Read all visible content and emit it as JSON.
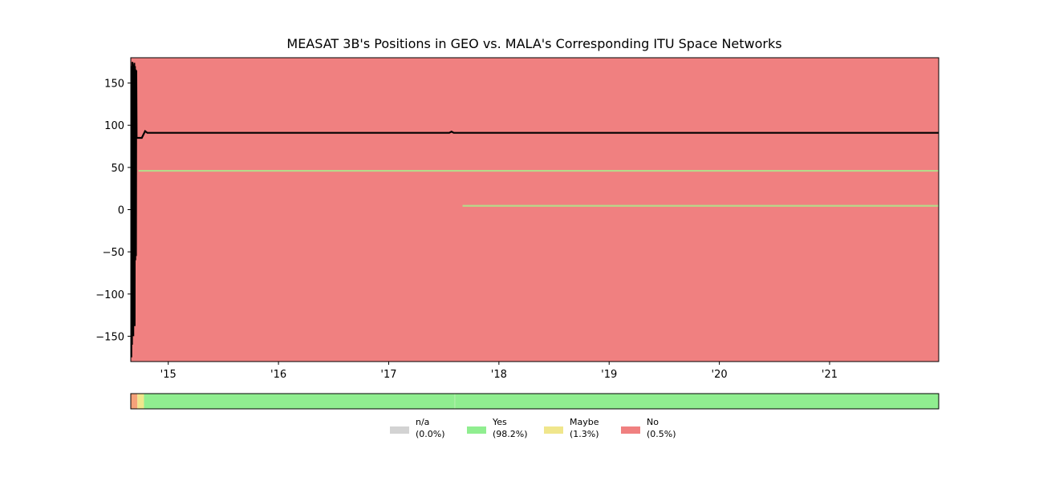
{
  "chart_data": {
    "type": "line",
    "title": "MEASAT 3B's Positions in GEO vs. MALA's Corresponding ITU Space Networks",
    "xlabel": "",
    "ylabel": "",
    "xlim": [
      2014.66,
      2021.99
    ],
    "ylim": [
      -180,
      180
    ],
    "background_color": "#f08080",
    "grid": false,
    "x_ticks": [
      {
        "value": 2015,
        "label": "'15"
      },
      {
        "value": 2016,
        "label": "'16"
      },
      {
        "value": 2017,
        "label": "'17"
      },
      {
        "value": 2018,
        "label": "'18"
      },
      {
        "value": 2019,
        "label": "'19"
      },
      {
        "value": 2020,
        "label": "'20"
      },
      {
        "value": 2021,
        "label": "'21"
      }
    ],
    "y_ticks": [
      {
        "value": 150,
        "label": "150"
      },
      {
        "value": 100,
        "label": "100"
      },
      {
        "value": 50,
        "label": "50"
      },
      {
        "value": 0,
        "label": "0"
      },
      {
        "value": -50,
        "label": "−50"
      },
      {
        "value": -100,
        "label": "−100"
      },
      {
        "value": -150,
        "label": "−150"
      }
    ],
    "series": [
      {
        "color": "#000000",
        "points": [
          [
            2014.665,
            -175
          ],
          [
            2014.668,
            170
          ],
          [
            2014.671,
            -160
          ],
          [
            2014.674,
            175
          ],
          [
            2014.677,
            -120
          ],
          [
            2014.68,
            172
          ],
          [
            2014.683,
            -150
          ],
          [
            2014.686,
            168
          ],
          [
            2014.689,
            -100
          ],
          [
            2014.692,
            174
          ],
          [
            2014.695,
            -138
          ],
          [
            2014.698,
            170
          ],
          [
            2014.701,
            -60
          ],
          [
            2014.704,
            166
          ],
          [
            2014.707,
            -55
          ],
          [
            2014.71,
            165
          ],
          [
            2014.713,
            85
          ],
          [
            2014.76,
            85
          ],
          [
            2014.79,
            93
          ],
          [
            2014.81,
            91
          ],
          [
            2017.55,
            91
          ],
          [
            2017.57,
            92.5
          ],
          [
            2017.59,
            91
          ],
          [
            2021.99,
            91
          ]
        ]
      }
    ],
    "itu_networks": [
      {
        "y": 46,
        "x_start": 2014.73,
        "x_end": 2021.99,
        "color": "#b5d98a"
      },
      {
        "y": 4.5,
        "x_start": 2017.67,
        "x_end": 2021.99,
        "color": "#b5d98a"
      }
    ],
    "status_bar": {
      "segments": [
        {
          "start": 2014.66,
          "end": 2014.72,
          "color": "#f5a27a"
        },
        {
          "start": 2014.72,
          "end": 2014.78,
          "color": "#f0e68c"
        },
        {
          "start": 2014.78,
          "end": 2021.99,
          "color": "#90ee90"
        }
      ],
      "divider_at": 2017.6
    },
    "legend": {
      "placement": "bottom-center",
      "items": [
        {
          "label": "n/a",
          "pct": "(0.0%)",
          "color": "#d3d3d3"
        },
        {
          "label": "Yes",
          "pct": "(98.2%)",
          "color": "#90ee90"
        },
        {
          "label": "Maybe",
          "pct": "(1.3%)",
          "color": "#f0e68c"
        },
        {
          "label": "No",
          "pct": "(0.5%)",
          "color": "#f08080"
        }
      ]
    }
  }
}
